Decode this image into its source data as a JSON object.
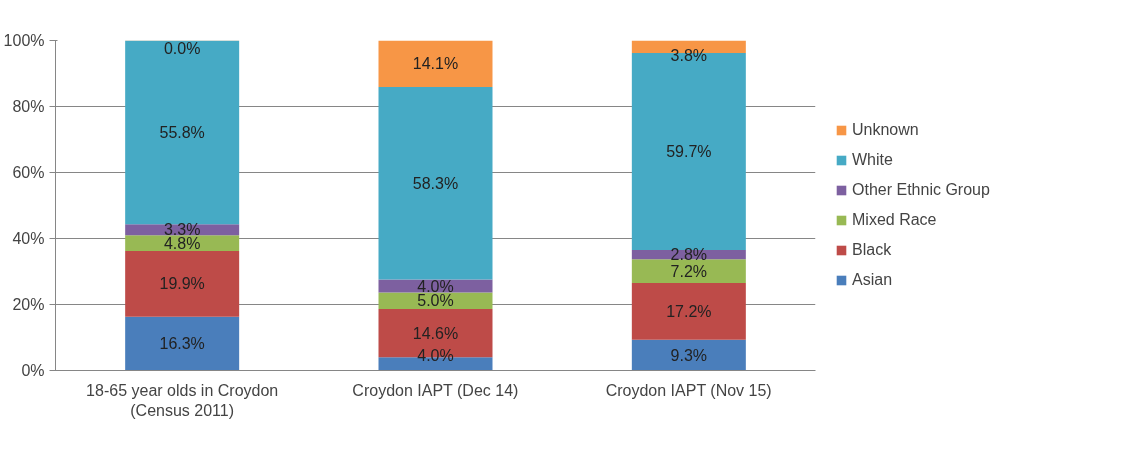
{
  "chart_data": {
    "type": "bar",
    "stacked": true,
    "categories": [
      "18-65 year olds in Croydon\n(Census 2011)",
      "Croydon IAPT (Dec 14)",
      "Croydon IAPT (Nov 15)"
    ],
    "series": [
      {
        "name": "Asian",
        "color": "#4a7ebb",
        "values": [
          16.3,
          4.0,
          9.3
        ],
        "value_labels": [
          "16.3%",
          "4.0%",
          "9.3%"
        ]
      },
      {
        "name": "Black",
        "color": "#be4b48",
        "values": [
          19.9,
          14.6,
          17.2
        ],
        "value_labels": [
          "19.9%",
          "14.6%",
          "17.2%"
        ]
      },
      {
        "name": "Mixed Race",
        "color": "#98b954",
        "values": [
          4.8,
          5.0,
          7.2
        ],
        "value_labels": [
          "4.8%",
          "5.0%",
          "7.2%"
        ]
      },
      {
        "name": "Other Ethnic Group",
        "color": "#7d60a0",
        "values": [
          3.3,
          4.0,
          2.8
        ],
        "value_labels": [
          "3.3%",
          "4.0%",
          "2.8%"
        ]
      },
      {
        "name": "White",
        "color": "#46aac5",
        "values": [
          55.8,
          58.3,
          59.7
        ],
        "value_labels": [
          "55.8%",
          "58.3%",
          "59.7%"
        ]
      },
      {
        "name": "Unknown",
        "color": "#f79646",
        "values": [
          0.0,
          14.1,
          3.8
        ],
        "value_labels": [
          "0.0%",
          "14.1%",
          "3.8%"
        ]
      }
    ],
    "ylim": [
      0,
      100
    ],
    "yticks": [
      {
        "value": 0,
        "label": "0%"
      },
      {
        "value": 20,
        "label": "20%"
      },
      {
        "value": 40,
        "label": "40%"
      },
      {
        "value": 60,
        "label": "60%"
      },
      {
        "value": 80,
        "label": "80%"
      },
      {
        "value": 100,
        "label": "100%"
      }
    ],
    "grid": "y",
    "legend": "right"
  }
}
